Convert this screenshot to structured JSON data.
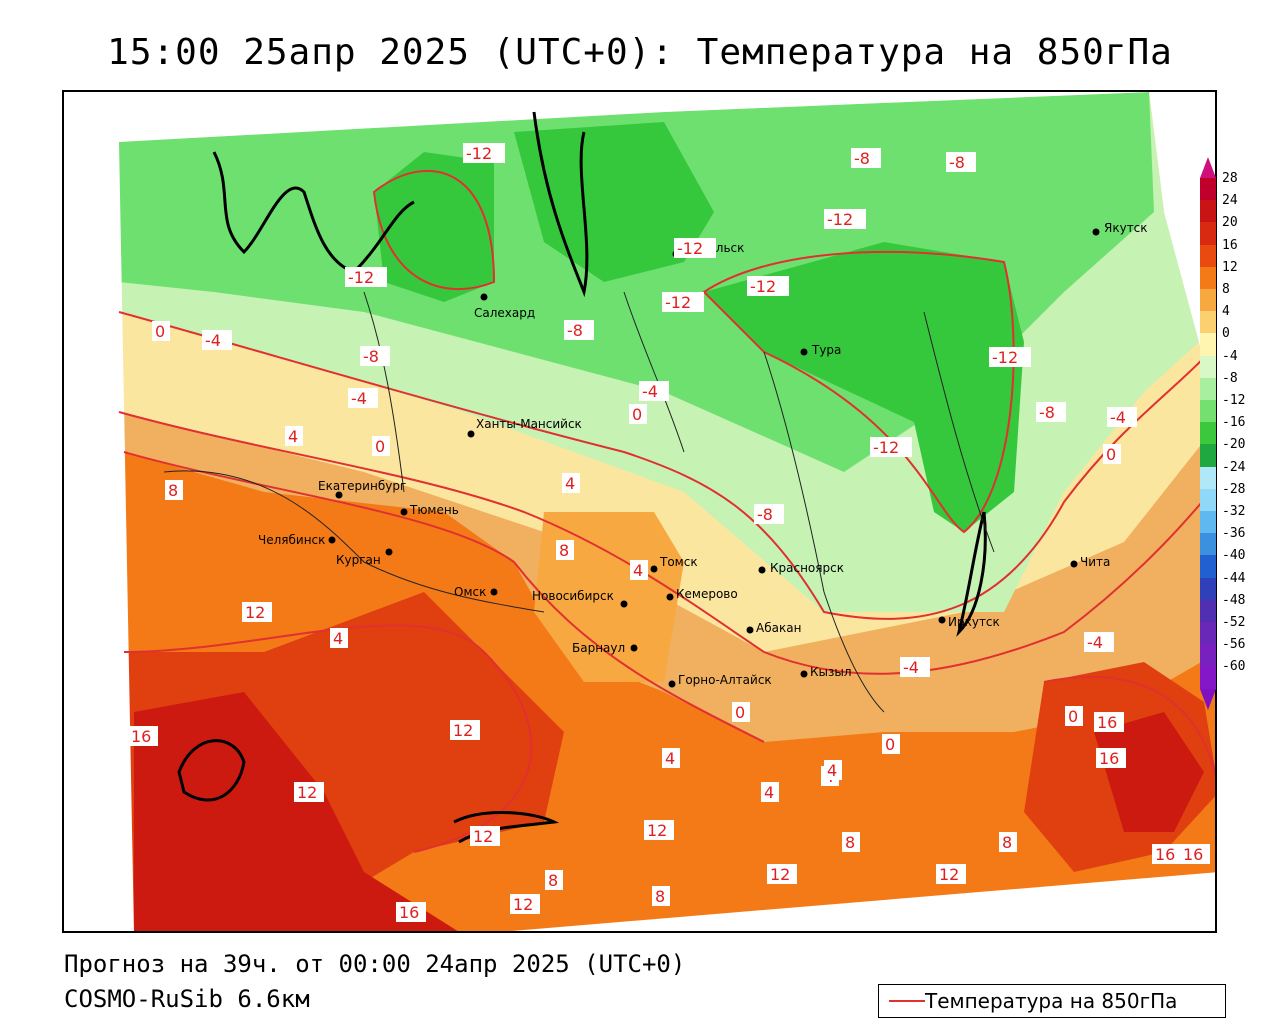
{
  "title": "15:00 25апр 2025 (UTC+0): Температура на 850гПа",
  "forecast_line": "Прогноз на 39ч. от 00:00 24апр 2025 (UTC+0)",
  "model_line": "COSMO-RuSib 6.6км",
  "legend": {
    "label": "Температура на 850гПа",
    "line_color": "#e03030"
  },
  "colorbar": {
    "labels": [
      "28",
      "24",
      "20",
      "16",
      "12",
      "8",
      "4",
      "0",
      "-4",
      "-8",
      "-12",
      "-16",
      "-20",
      "-24",
      "-28",
      "-32",
      "-36",
      "-40",
      "-44",
      "-48",
      "-52",
      "-56",
      "-60"
    ],
    "colors": [
      "#c0002a",
      "#c81414",
      "#d82a10",
      "#e84a10",
      "#f47a18",
      "#f8a840",
      "#fcd070",
      "#fff4b0",
      "#d8f8c8",
      "#a8f0a0",
      "#74e070",
      "#3cc83c",
      "#20a840",
      "#b0e8f8",
      "#90d8f8",
      "#60b8f0",
      "#3c90e0",
      "#2060d0",
      "#3040b8",
      "#5030b0",
      "#6a28b8",
      "#7820c0",
      "#8418c8"
    ]
  },
  "cities": [
    {
      "name": "Норильск"
    },
    {
      "name": "Якутск"
    },
    {
      "name": "Салехард"
    },
    {
      "name": "Тура"
    },
    {
      "name": "Ханты-Мансийск"
    },
    {
      "name": "Екатеринбург"
    },
    {
      "name": "Тюмень"
    },
    {
      "name": "Челябинск"
    },
    {
      "name": "Курган"
    },
    {
      "name": "Омск"
    },
    {
      "name": "Новосибирск"
    },
    {
      "name": "Томск"
    },
    {
      "name": "Кемерово"
    },
    {
      "name": "Красноярск"
    },
    {
      "name": "Барнаул"
    },
    {
      "name": "Абакан"
    },
    {
      "name": "Иркутск"
    },
    {
      "name": "Чита"
    },
    {
      "name": "Кызыл"
    },
    {
      "name": "Горно-Алтайск"
    }
  ],
  "contour_labels": [
    "-12",
    "-8",
    "-8",
    "-12",
    "-12",
    "-12",
    "-12",
    "-12",
    "-8",
    "0",
    "-4",
    "-8",
    "-4",
    "-4",
    "0",
    "4",
    "0",
    "-12",
    "-8",
    "-4",
    "0",
    "4",
    "8",
    "-12",
    "-8",
    "8",
    "4",
    "4",
    "12",
    "-4",
    "-4",
    "12",
    "16",
    "0",
    "16",
    "12",
    "4",
    "0",
    "4",
    "4",
    "12",
    "16",
    "8",
    "8",
    "12",
    "12",
    "8",
    "12",
    "16",
    "16",
    "12",
    "8",
    "16",
    "0",
    "4"
  ]
}
